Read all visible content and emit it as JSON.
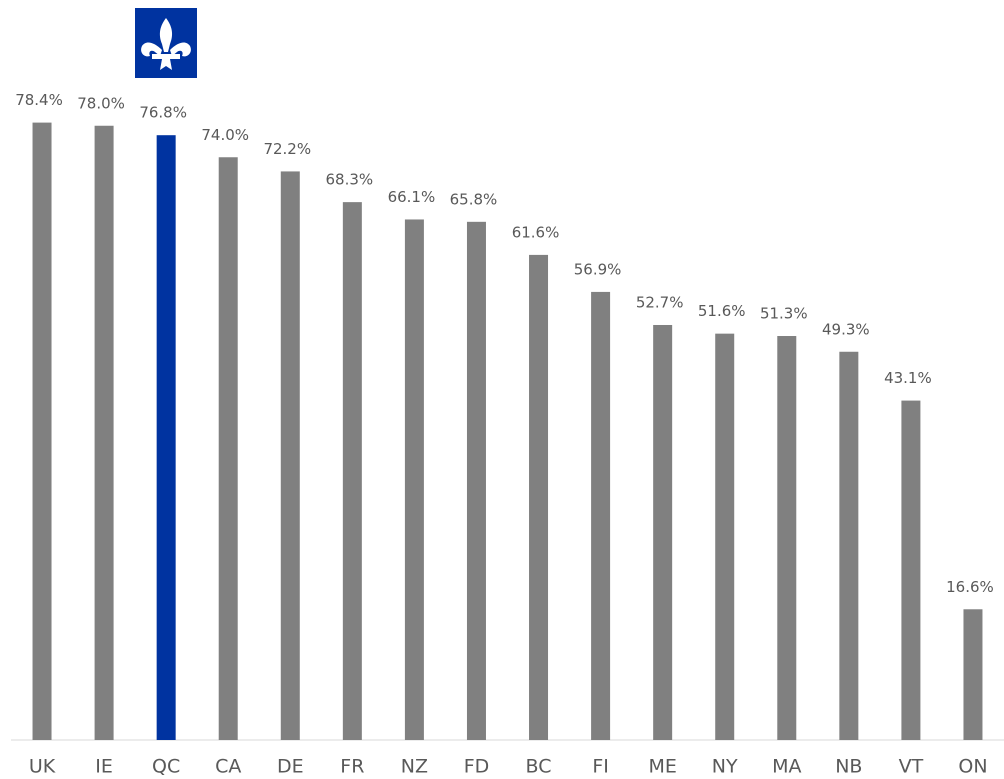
{
  "chart_data": {
    "type": "bar",
    "categories": [
      "UK",
      "IE",
      "QC",
      "CA",
      "DE",
      "FR",
      "NZ",
      "FD",
      "BC",
      "FI",
      "ME",
      "NY",
      "MA",
      "NB",
      "VT",
      "ON"
    ],
    "values": [
      78.4,
      78.0,
      76.8,
      74.0,
      72.2,
      68.3,
      66.1,
      65.8,
      61.6,
      56.9,
      52.7,
      51.6,
      51.3,
      49.3,
      43.1,
      16.6
    ],
    "value_labels": [
      "78.4%",
      "78.0%",
      "76.8%",
      "74.0%",
      "72.2%",
      "68.3%",
      "66.1%",
      "65.8%",
      "61.6%",
      "56.9%",
      "52.7%",
      "51.6%",
      "51.3%",
      "49.3%",
      "43.1%",
      "16.6%"
    ],
    "colors": [
      "#808080",
      "#808080",
      "#0033a0",
      "#808080",
      "#808080",
      "#808080",
      "#808080",
      "#808080",
      "#808080",
      "#808080",
      "#808080",
      "#808080",
      "#808080",
      "#808080",
      "#808080",
      "#808080"
    ],
    "ylim": [
      0,
      80
    ]
  }
}
